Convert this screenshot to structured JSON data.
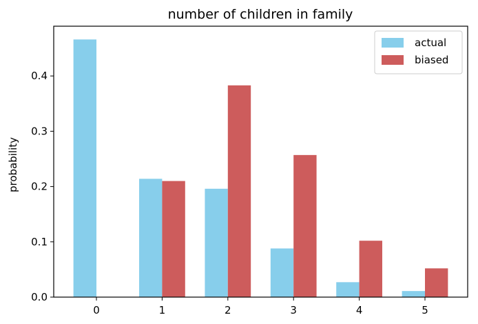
{
  "chart_data": {
    "type": "bar",
    "title": "number of children in family",
    "xlabel": "",
    "ylabel": "probability",
    "categories": [
      "0",
      "1",
      "2",
      "3",
      "4",
      "5"
    ],
    "x": [
      0,
      1,
      2,
      3,
      4,
      5
    ],
    "ylim": [
      0,
      0.49
    ],
    "yticks": [
      "0.0",
      "0.1",
      "0.2",
      "0.3",
      "0.4"
    ],
    "grid": false,
    "legend_position": "top-right",
    "series": [
      {
        "name": "actual",
        "color": "#87CEEB",
        "values": [
          0.466,
          0.214,
          0.196,
          0.088,
          0.027,
          0.011
        ]
      },
      {
        "name": "biased",
        "color": "#CD5C5C",
        "values": [
          0.0,
          0.21,
          0.383,
          0.257,
          0.102,
          0.052
        ]
      }
    ]
  }
}
